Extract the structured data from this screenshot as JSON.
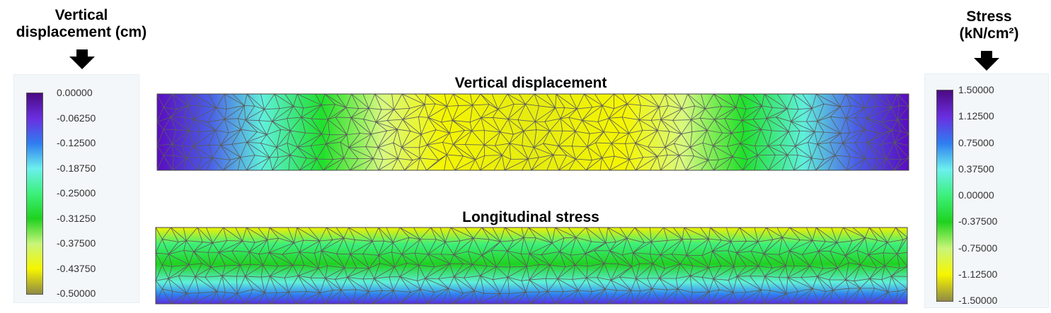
{
  "left_legend": {
    "title_lines": [
      "Vertical",
      "displacement (cm)"
    ],
    "ticks": [
      "0.00000",
      "-0.06250",
      "-0.12500",
      "-0.18750",
      "-0.25000",
      "-0.31250",
      "-0.37500",
      "-0.43750",
      "-0.50000"
    ],
    "colormap": [
      "#4b0a82",
      "#6a2ee0",
      "#2f7df0",
      "#6cf0ee",
      "#3cf07a",
      "#1fd21f",
      "#c8f57a",
      "#f6f600",
      "#908a44"
    ]
  },
  "right_legend": {
    "title_lines": [
      "Stress",
      "(kN/cm²)"
    ],
    "ticks": [
      "1.50000",
      "1.12500",
      "0.75000",
      "0.37500",
      "0.00000",
      "-0.37500",
      "-0.75000",
      "-1.12500",
      "-1.50000"
    ],
    "colormap": [
      "#4b0a82",
      "#6a2ee0",
      "#2f7df0",
      "#6cf0ee",
      "#3cf07a",
      "#1fd21f",
      "#c8f57a",
      "#f6f600",
      "#908a44"
    ]
  },
  "top_plot": {
    "title": "Vertical displacement",
    "gradient_stops": [
      {
        "at": 0.0,
        "color": "#5a0cbf"
      },
      {
        "at": 0.07,
        "color": "#4a5ee6"
      },
      {
        "at": 0.14,
        "color": "#5ff0dc"
      },
      {
        "at": 0.22,
        "color": "#1fe02a"
      },
      {
        "at": 0.3,
        "color": "#d8f880"
      },
      {
        "at": 0.38,
        "color": "#f5f500"
      },
      {
        "at": 0.5,
        "color": "#e6ec10"
      },
      {
        "at": 0.62,
        "color": "#f5f500"
      },
      {
        "at": 0.7,
        "color": "#d8f880"
      },
      {
        "at": 0.78,
        "color": "#1fe02a"
      },
      {
        "at": 0.86,
        "color": "#5ff0dc"
      },
      {
        "at": 0.93,
        "color": "#4a5ee6"
      },
      {
        "at": 1.0,
        "color": "#5a0cbf"
      }
    ]
  },
  "bottom_plot": {
    "title": "Longitudinal stress",
    "gradient_stops": [
      {
        "at": 0.0,
        "color": "#f0f000"
      },
      {
        "at": 0.22,
        "color": "#3cf07a"
      },
      {
        "at": 0.48,
        "color": "#1fd21f"
      },
      {
        "at": 0.72,
        "color": "#5ff0dc"
      },
      {
        "at": 0.88,
        "color": "#2f7df0"
      },
      {
        "at": 1.0,
        "color": "#5a2ee0"
      }
    ]
  }
}
